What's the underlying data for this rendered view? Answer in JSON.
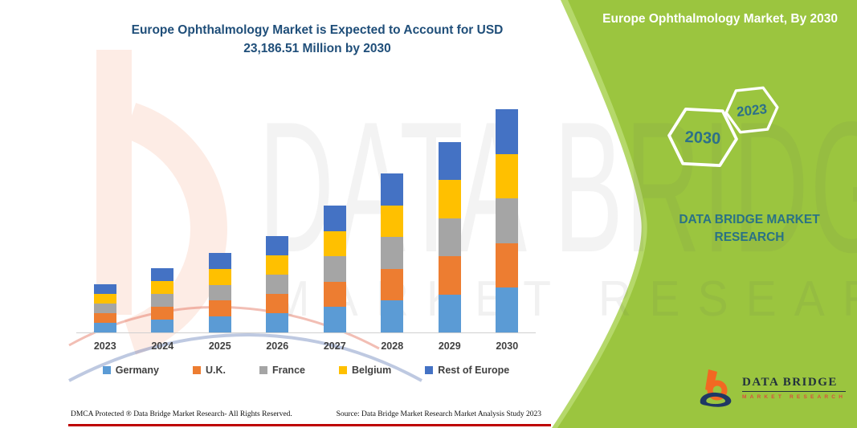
{
  "title": {
    "line1": "Europe Ophthalmology Market is Expected to Account for USD",
    "line2": "23,186.51 Million by 2030"
  },
  "side_panel": {
    "heading": "Europe Ophthalmology Market, By 2030",
    "hexagon_big_label": "2030",
    "hexagon_small_label": "2023",
    "brand_caption": "DATA BRIDGE MARKET RESEARCH",
    "green_color": "#9BC53F",
    "green_edge_color": "#B5D86A",
    "teal_text_color": "#2A7285"
  },
  "watermark": {
    "line1": "DATA BRIDGE",
    "line2": "MARKET RESEARCH"
  },
  "chart_data": {
    "type": "bar",
    "stacked": true,
    "title": "Europe Ophthalmology Market is Expected to Account for USD 23,186.51 Million by 2030",
    "xlabel": "",
    "ylabel": "",
    "unit": "USD Million",
    "grid": false,
    "legend_position": "bottom",
    "categories": [
      "2023",
      "2024",
      "2025",
      "2026",
      "2027",
      "2028",
      "2029",
      "2030"
    ],
    "series": [
      {
        "name": "Germany",
        "color": "#5B9BD5",
        "values": [
          1000,
          1334,
          1652,
          2002,
          2636,
          3302,
          3954,
          4637.3
        ]
      },
      {
        "name": "U.K.",
        "color": "#ED7D31",
        "values": [
          1000,
          1334,
          1652,
          2002,
          2636,
          3302,
          3954,
          4637.3
        ]
      },
      {
        "name": "France",
        "color": "#A5A5A5",
        "values": [
          1000,
          1334,
          1652,
          2002,
          2636,
          3302,
          3954,
          4637.3
        ]
      },
      {
        "name": "Belgium",
        "color": "#FFC000",
        "values": [
          1000,
          1334,
          1652,
          2002,
          2636,
          3302,
          3954,
          4637.3
        ]
      },
      {
        "name": "Rest of Europe",
        "color": "#4472C4",
        "values": [
          1000,
          1334,
          1652,
          2002,
          2636,
          3302,
          3954,
          4637.3
        ]
      }
    ],
    "totals": [
      5000,
      6670,
      8260,
      10010,
      13180,
      16510,
      19770,
      23186.51
    ],
    "ylim": [
      0,
      24000
    ],
    "note": "No value axis is drawn; per-country values are estimated from segment heights, anchored to the labeled 2030 total of USD 23,186.51 million."
  },
  "footer": {
    "dmca": "DMCA Protected ® Data Bridge Market Research- All Rights Reserved.",
    "source": "Source: Data Bridge Market Research Market Analysis Study 2023"
  },
  "logo": {
    "word": "DATA BRIDGE",
    "tagline": "MARKET RESEARCH"
  }
}
